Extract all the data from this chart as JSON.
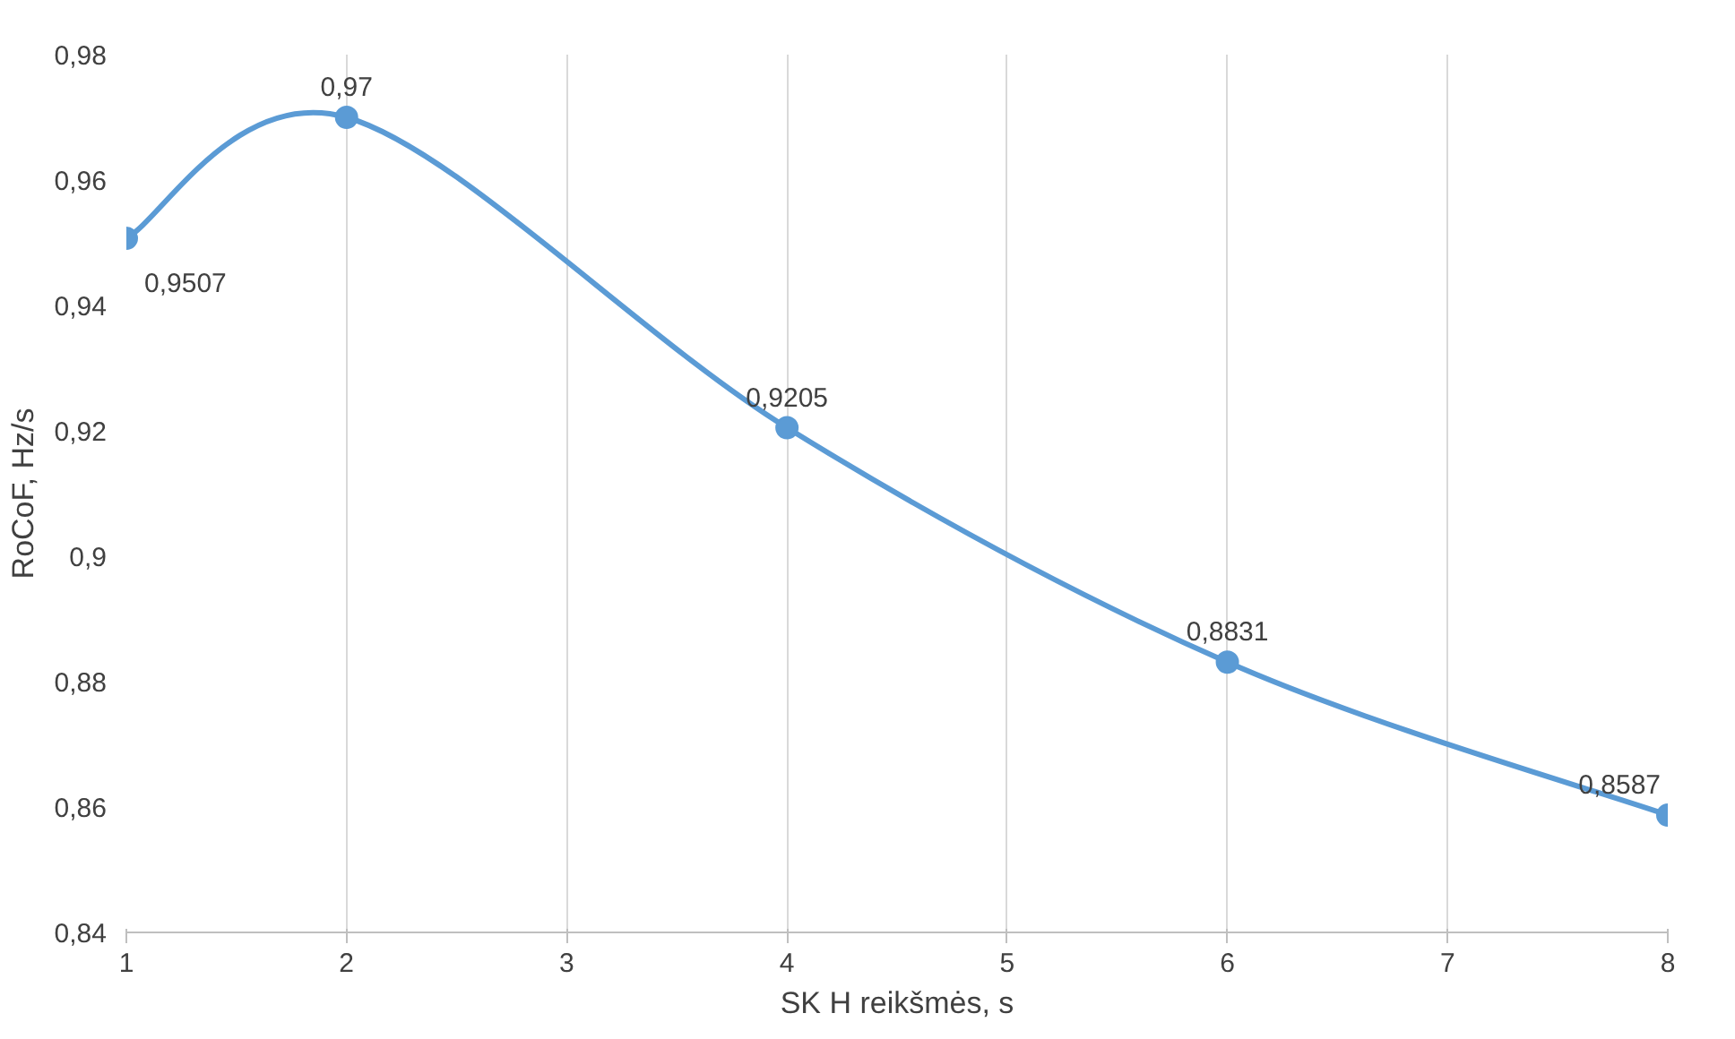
{
  "chart_data": {
    "type": "line",
    "xlabel": "SK H reikšmės, s",
    "ylabel": "RoCoF, Hz/s",
    "x": [
      1,
      2,
      4,
      6,
      8
    ],
    "series": [
      {
        "color": "#5b9bd5",
        "values": [
          0.9507,
          0.97,
          0.9205,
          0.8831,
          0.8587
        ],
        "value_labels": [
          "0,9507",
          "0,97",
          "0,9205",
          "0,8831",
          "0,8587"
        ]
      }
    ],
    "xlim": [
      1,
      8
    ],
    "xticks": [
      1,
      2,
      3,
      4,
      5,
      6,
      7,
      8
    ],
    "ylim": [
      0.84,
      0.98
    ],
    "yticks": [
      {
        "value": 0.84,
        "label": "0,84"
      },
      {
        "value": 0.86,
        "label": "0,86"
      },
      {
        "value": 0.88,
        "label": "0,88"
      },
      {
        "value": 0.9,
        "label": "0,9"
      },
      {
        "value": 0.92,
        "label": "0,92"
      },
      {
        "value": 0.94,
        "label": "0,94"
      },
      {
        "value": 0.96,
        "label": "0,96"
      },
      {
        "value": 0.98,
        "label": "0,98"
      }
    ],
    "grid": "x",
    "marker": "circle",
    "line_style": "solid"
  }
}
